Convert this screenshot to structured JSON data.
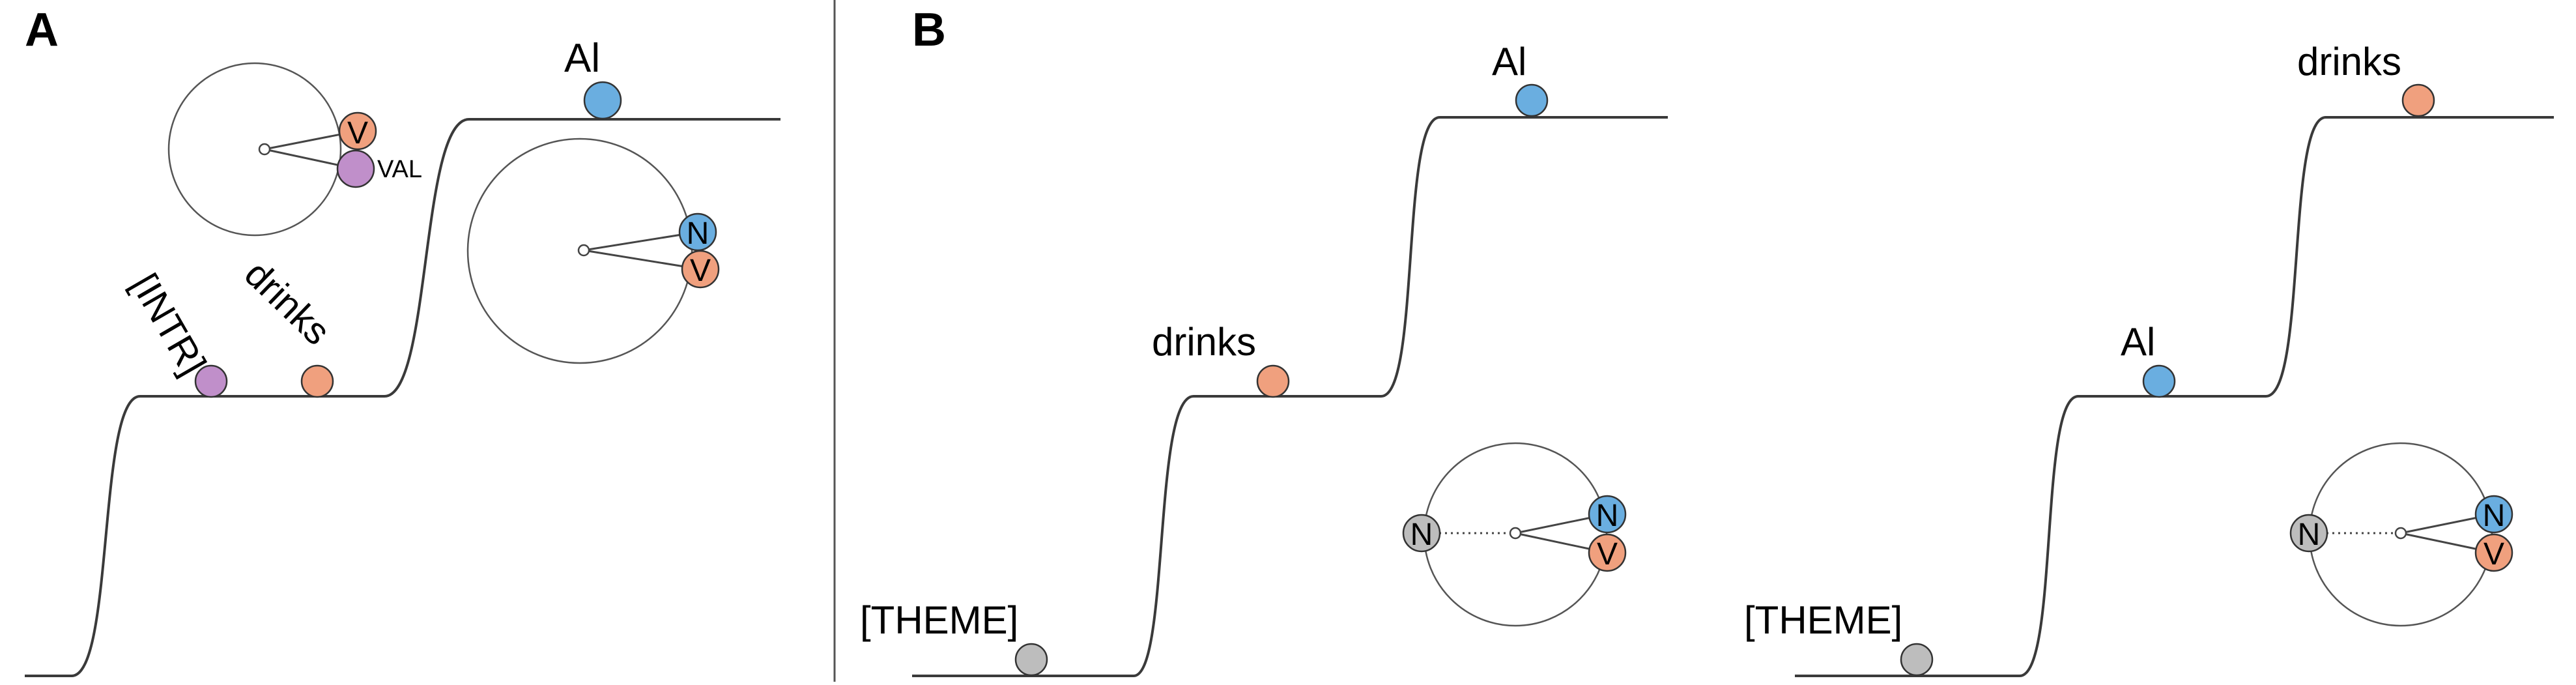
{
  "panels": {
    "a": {
      "letter": "A",
      "word_al": "Al",
      "word_drinks": "drinks",
      "word_intr": "[INTR]",
      "dial_top": {
        "label_v": "V",
        "label_val": "VAL"
      },
      "dial_right": {
        "label_n": "N",
        "label_v": "V"
      }
    },
    "b": {
      "letter": "B",
      "left": {
        "word_theme": "[THEME]",
        "word_middle": "drinks",
        "word_top": "Al",
        "dial": {
          "label_n_left": "N",
          "label_n": "N",
          "label_v": "V"
        }
      },
      "right": {
        "word_theme": "[THEME]",
        "word_middle": "Al",
        "word_top": "drinks",
        "dial": {
          "label_n_left": "N",
          "label_n": "N",
          "label_v": "V"
        }
      }
    }
  },
  "colors": {
    "line": "#3a3a3a",
    "blue": "#6aaee0",
    "orange": "#f0a07e",
    "purple": "#c08fca",
    "gray": "#bdbdbd",
    "outline": "#333333"
  }
}
